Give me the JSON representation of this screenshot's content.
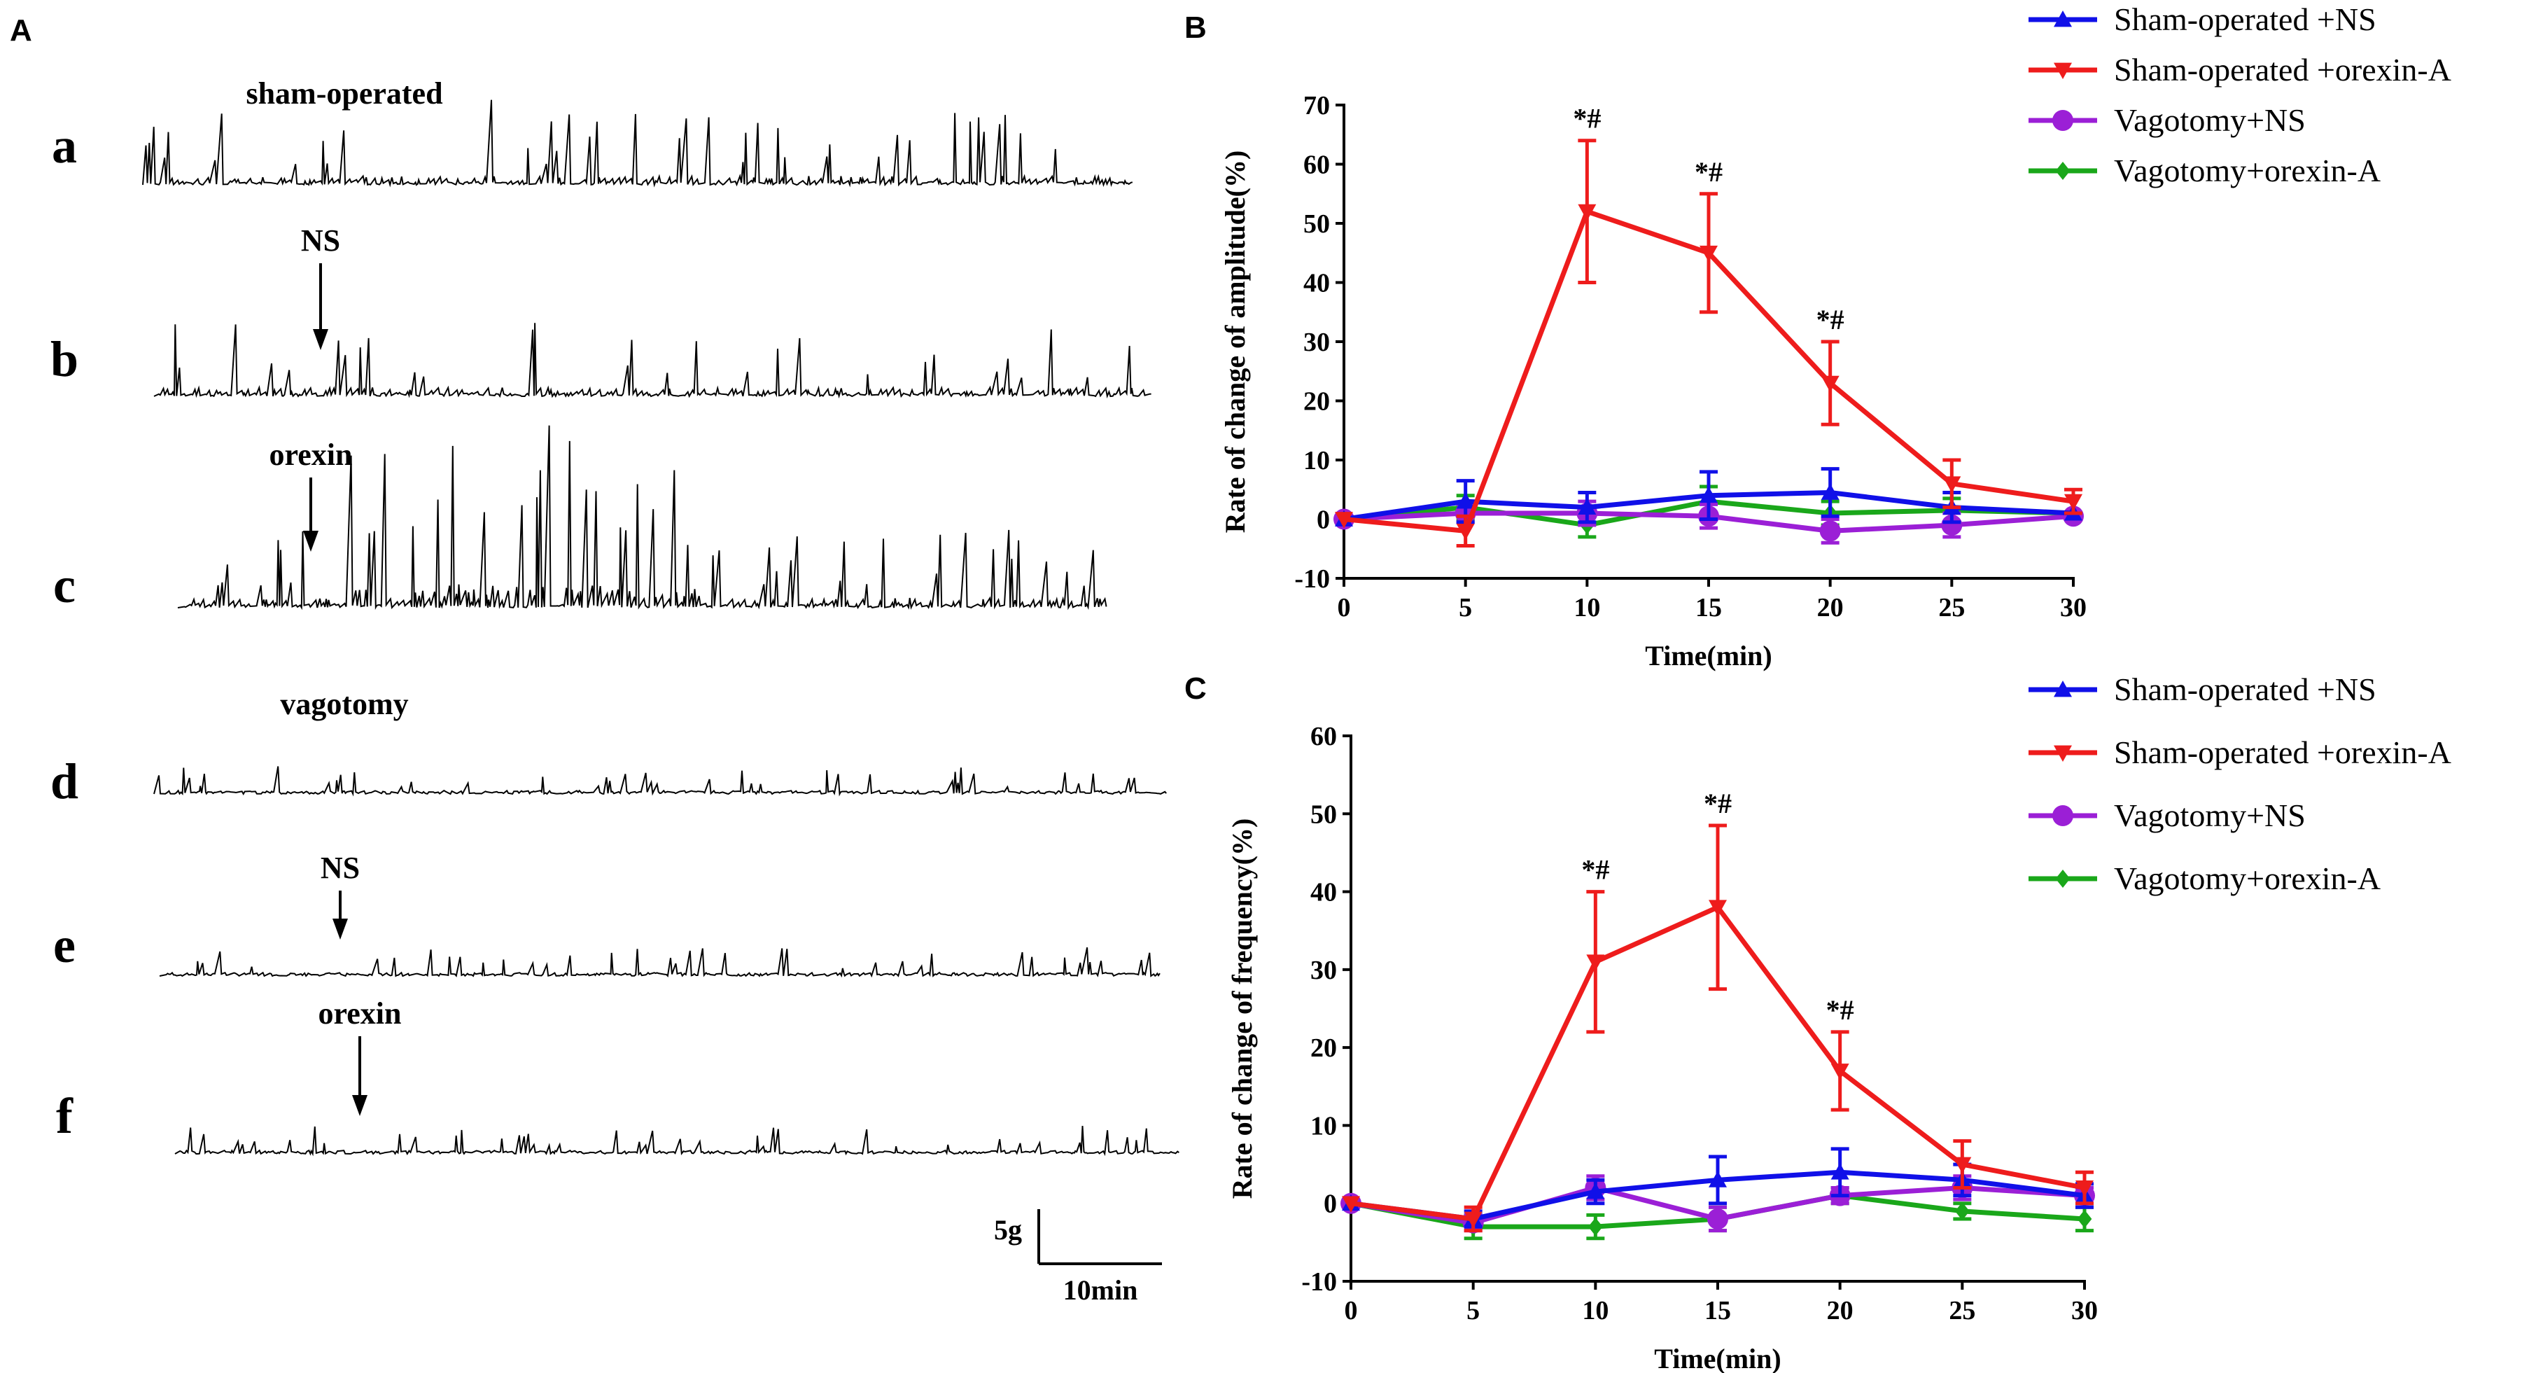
{
  "panel_a": {
    "letter": "A",
    "scale_bar": {
      "amplitude_label": "5g",
      "time_label": "10min"
    },
    "traces": [
      {
        "row_label": "a",
        "condition": "sham-operated",
        "arrow_label": "",
        "style": "sham-baseline"
      },
      {
        "row_label": "b",
        "condition": "",
        "arrow_label": "NS",
        "style": "sham-ns"
      },
      {
        "row_label": "c",
        "condition": "",
        "arrow_label": "orexin",
        "style": "sham-orexin"
      },
      {
        "row_label": "d",
        "condition": "vagotomy",
        "arrow_label": "",
        "style": "vag-baseline"
      },
      {
        "row_label": "e",
        "condition": "",
        "arrow_label": "NS",
        "style": "vag-ns"
      },
      {
        "row_label": "f",
        "condition": "",
        "arrow_label": "orexin",
        "style": "vag-orexin"
      }
    ]
  },
  "chart_data": [
    {
      "panel": "B",
      "type": "line",
      "title": "",
      "xlabel": "Time(min)",
      "ylabel": "Rate of change of amplitude(%)",
      "x": [
        0,
        5,
        10,
        15,
        20,
        25,
        30
      ],
      "xlim": [
        0,
        30
      ],
      "ylim": [
        -10,
        70
      ],
      "xticks": [
        0,
        5,
        10,
        15,
        20,
        25,
        30
      ],
      "yticks": [
        -10,
        0,
        10,
        20,
        30,
        40,
        50,
        60,
        70
      ],
      "grid": false,
      "legend_position": "top-right",
      "significance_marker": "*#",
      "significant_x": [
        10,
        15,
        20
      ],
      "series": [
        {
          "name": "Sham-operated +NS",
          "color": "#1010e8",
          "marker": "triangle-up",
          "values": [
            0,
            3,
            2,
            4,
            4.5,
            2,
            1
          ],
          "errors": [
            0,
            3.5,
            2.5,
            4,
            4,
            2.5,
            0
          ]
        },
        {
          "name": "Sham-operated +orexin-A",
          "color": "#ee1c1c",
          "marker": "triangle-down",
          "values": [
            0,
            -2,
            52,
            45,
            23,
            6,
            3
          ],
          "errors": [
            0,
            2.5,
            12,
            10,
            7,
            4,
            2
          ]
        },
        {
          "name": "Vagotomy+NS",
          "color": "#9b1fd6",
          "marker": "circle",
          "values": [
            0,
            1,
            1,
            0.5,
            -2,
            -1,
            0.5
          ],
          "errors": [
            0,
            1.5,
            2,
            2,
            2,
            2,
            0
          ]
        },
        {
          "name": "Vagotomy+orexin-A",
          "color": "#1aa71a",
          "marker": "diamond",
          "values": [
            0,
            2,
            -1,
            3,
            1,
            1.5,
            1
          ],
          "errors": [
            0,
            2,
            2,
            2.5,
            2,
            2,
            0
          ]
        }
      ]
    },
    {
      "panel": "C",
      "type": "line",
      "title": "",
      "xlabel": "Time(min)",
      "ylabel": "Rate of change of frequency(%)",
      "x": [
        0,
        5,
        10,
        15,
        20,
        25,
        30
      ],
      "xlim": [
        0,
        30
      ],
      "ylim": [
        -10,
        60
      ],
      "xticks": [
        0,
        5,
        10,
        15,
        20,
        25,
        30
      ],
      "yticks": [
        -10,
        0,
        10,
        20,
        30,
        40,
        50,
        60
      ],
      "grid": false,
      "legend_position": "top-right",
      "significance_marker": "*#",
      "significant_x": [
        10,
        15,
        20
      ],
      "series": [
        {
          "name": "Sham-operated +NS",
          "color": "#1010e8",
          "marker": "triangle-up",
          "values": [
            0,
            -2,
            1.5,
            3,
            4,
            3,
            1
          ],
          "errors": [
            0,
            1,
            1.5,
            3,
            3,
            2,
            1.5
          ]
        },
        {
          "name": "Sham-operated +orexin-A",
          "color": "#ee1c1c",
          "marker": "triangle-down",
          "values": [
            0,
            -2,
            31,
            38,
            17,
            5,
            2
          ],
          "errors": [
            0,
            1.5,
            9,
            10.5,
            5,
            3,
            2
          ]
        },
        {
          "name": "Vagotomy+NS",
          "color": "#9b1fd6",
          "marker": "circle",
          "values": [
            0,
            -2.5,
            2,
            -2,
            1,
            2,
            1
          ],
          "errors": [
            0,
            1,
            1.5,
            1.5,
            1,
            1.5,
            1
          ]
        },
        {
          "name": "Vagotomy+orexin-A",
          "color": "#1aa71a",
          "marker": "diamond",
          "values": [
            0,
            -3,
            -3,
            -2,
            1,
            -1,
            -2
          ],
          "errors": [
            0,
            1.5,
            1.5,
            1.5,
            1,
            1,
            1.5
          ]
        }
      ]
    }
  ]
}
